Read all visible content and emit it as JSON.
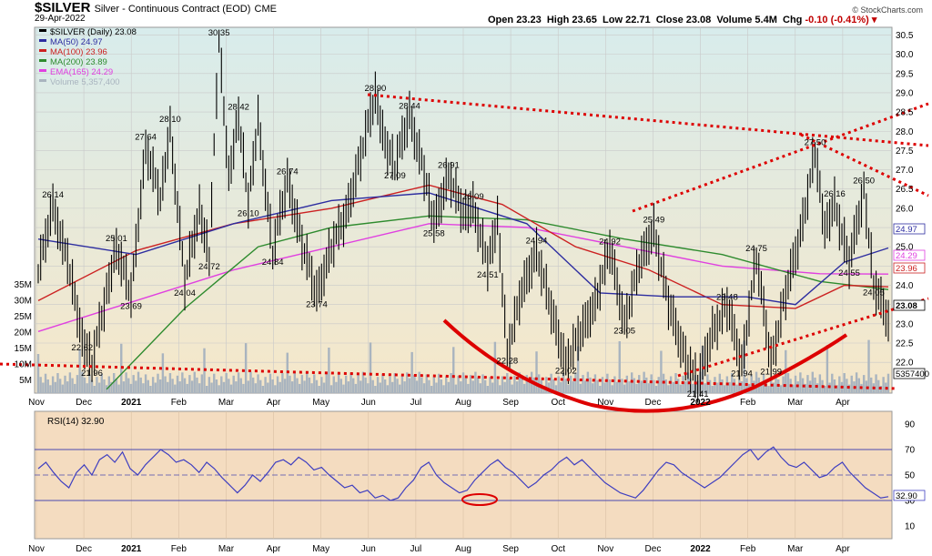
{
  "header": {
    "title": "$SILVER",
    "subtitle": "Silver - Continuous Contract (EOD)",
    "exchange": "CME",
    "date": "29-Apr-2022",
    "brand": "© StockCharts.com",
    "quote": {
      "open_label": "Open",
      "open": "23.23",
      "high_label": "High",
      "high": "23.65",
      "low_label": "Low",
      "low": "22.71",
      "close_label": "Close",
      "close": "23.08",
      "volume_label": "Volume",
      "volume": "5.4M",
      "chg_label": "Chg",
      "chg": "-0.10 (-0.41%)"
    }
  },
  "colors": {
    "price": "#000000",
    "ma50": "#2d2da0",
    "ma100": "#cc2222",
    "ma200": "#2e8b2e",
    "ema165": "#e040e0",
    "volume": "#a9b4bf",
    "trendline": "#dd0000",
    "rsi": "#3f3fc0",
    "upper_panel_bg_top": "#d8ecec",
    "upper_panel_bg_bottom": "#f6e7c9",
    "lower_panel_bg": "#f4dcc0"
  },
  "chart_data": [
    {
      "type": "line",
      "title": "$SILVER (Daily) 23.08",
      "legend": [
        {
          "label": "$SILVER (Daily) 23.08",
          "color": "#000000"
        },
        {
          "label": "MA(50) 24.97",
          "color": "#2d2da0"
        },
        {
          "label": "MA(100) 23.96",
          "color": "#cc2222"
        },
        {
          "label": "MA(200) 23.89",
          "color": "#2e8b2e"
        },
        {
          "label": "EMA(165) 24.29",
          "color": "#e040e0"
        },
        {
          "label": "Volume 5,357,400",
          "color": "#a9b4bf"
        }
      ],
      "legend_position": "top-left",
      "x_ticks": [
        "Nov",
        "Dec",
        "2021",
        "Feb",
        "Mar",
        "Apr",
        "May",
        "Jun",
        "Jul",
        "Aug",
        "Sep",
        "Oct",
        "Nov",
        "Dec",
        "2022",
        "Feb",
        "Mar",
        "Apr"
      ],
      "y_ticks": [
        "22.0",
        "22.5",
        "23.0",
        "23.5",
        "24.0",
        "24.5",
        "25.0",
        "25.5",
        "26.0",
        "26.5",
        "27.0",
        "27.5",
        "28.0",
        "28.5",
        "29.0",
        "29.5",
        "30.0",
        "30.5"
      ],
      "ylim": [
        21.2,
        30.7
      ],
      "volume_ticks": [
        "5M",
        "10M",
        "15M",
        "20M",
        "25M",
        "30M",
        "35M"
      ],
      "grid": true,
      "price_points": [
        {
          "t": 0,
          "v": 24.3
        },
        {
          "t": 3,
          "v": 26.14
        },
        {
          "t": 7,
          "v": 24.0
        },
        {
          "t": 9,
          "v": 22.62
        },
        {
          "t": 11,
          "v": 21.96
        },
        {
          "t": 14,
          "v": 23.8
        },
        {
          "t": 16,
          "v": 25.01
        },
        {
          "t": 19,
          "v": 23.69
        },
        {
          "t": 22,
          "v": 27.64
        },
        {
          "t": 25,
          "v": 26.2
        },
        {
          "t": 27,
          "v": 28.1
        },
        {
          "t": 30,
          "v": 24.04
        },
        {
          "t": 33,
          "v": 26.0
        },
        {
          "t": 35,
          "v": 24.72
        },
        {
          "t": 37,
          "v": 30.35
        },
        {
          "t": 39,
          "v": 26.8
        },
        {
          "t": 41,
          "v": 28.42
        },
        {
          "t": 43,
          "v": 26.1
        },
        {
          "t": 45,
          "v": 28.3
        },
        {
          "t": 48,
          "v": 24.84
        },
        {
          "t": 51,
          "v": 26.74
        },
        {
          "t": 54,
          "v": 25.1
        },
        {
          "t": 57,
          "v": 23.74
        },
        {
          "t": 60,
          "v": 25.0
        },
        {
          "t": 63,
          "v": 25.8
        },
        {
          "t": 66,
          "v": 27.4
        },
        {
          "t": 69,
          "v": 28.9
        },
        {
          "t": 71,
          "v": 27.7
        },
        {
          "t": 73,
          "v": 27.09
        },
        {
          "t": 76,
          "v": 28.44
        },
        {
          "t": 79,
          "v": 26.9
        },
        {
          "t": 81,
          "v": 25.58
        },
        {
          "t": 84,
          "v": 26.91
        },
        {
          "t": 87,
          "v": 25.8
        },
        {
          "t": 89,
          "v": 26.09
        },
        {
          "t": 92,
          "v": 24.51
        },
        {
          "t": 94,
          "v": 25.7
        },
        {
          "t": 96,
          "v": 22.28
        },
        {
          "t": 99,
          "v": 23.8
        },
        {
          "t": 102,
          "v": 24.94
        },
        {
          "t": 105,
          "v": 23.3
        },
        {
          "t": 108,
          "v": 22.02
        },
        {
          "t": 111,
          "v": 22.7
        },
        {
          "t": 114,
          "v": 23.6
        },
        {
          "t": 117,
          "v": 24.92
        },
        {
          "t": 120,
          "v": 23.05
        },
        {
          "t": 123,
          "v": 24.5
        },
        {
          "t": 126,
          "v": 25.49
        },
        {
          "t": 129,
          "v": 23.5
        },
        {
          "t": 132,
          "v": 22.3
        },
        {
          "t": 135,
          "v": 21.41
        },
        {
          "t": 138,
          "v": 22.8
        },
        {
          "t": 141,
          "v": 23.48
        },
        {
          "t": 144,
          "v": 21.94
        },
        {
          "t": 147,
          "v": 24.75
        },
        {
          "t": 150,
          "v": 21.99
        },
        {
          "t": 153,
          "v": 23.8
        },
        {
          "t": 156,
          "v": 25.3
        },
        {
          "t": 159,
          "v": 27.5
        },
        {
          "t": 161,
          "v": 25.4
        },
        {
          "t": 163,
          "v": 26.16
        },
        {
          "t": 166,
          "v": 24.55
        },
        {
          "t": 169,
          "v": 26.5
        },
        {
          "t": 171,
          "v": 24.05
        },
        {
          "t": 174,
          "v": 23.08
        }
      ],
      "ma50_points": [
        [
          0,
          25.2
        ],
        [
          20,
          24.8
        ],
        [
          40,
          25.6
        ],
        [
          60,
          26.2
        ],
        [
          80,
          26.4
        ],
        [
          100,
          25.6
        ],
        [
          115,
          23.8
        ],
        [
          130,
          23.7
        ],
        [
          145,
          23.7
        ],
        [
          155,
          23.5
        ],
        [
          165,
          24.6
        ],
        [
          174,
          24.97
        ]
      ],
      "ma100_points": [
        [
          0,
          23.6
        ],
        [
          20,
          24.9
        ],
        [
          40,
          25.6
        ],
        [
          60,
          26.0
        ],
        [
          80,
          26.6
        ],
        [
          95,
          26.1
        ],
        [
          110,
          25.0
        ],
        [
          125,
          24.4
        ],
        [
          140,
          23.5
        ],
        [
          155,
          23.4
        ],
        [
          165,
          24.0
        ],
        [
          174,
          23.96
        ]
      ],
      "ma200_points": [
        [
          14,
          21.3
        ],
        [
          30,
          23.4
        ],
        [
          45,
          25.0
        ],
        [
          60,
          25.5
        ],
        [
          80,
          25.8
        ],
        [
          100,
          25.7
        ],
        [
          120,
          25.2
        ],
        [
          140,
          24.8
        ],
        [
          160,
          24.1
        ],
        [
          174,
          23.89
        ]
      ],
      "ema165_points": [
        [
          0,
          22.8
        ],
        [
          20,
          23.6
        ],
        [
          40,
          24.4
        ],
        [
          60,
          25.0
        ],
        [
          80,
          25.6
        ],
        [
          100,
          25.5
        ],
        [
          120,
          25.0
        ],
        [
          140,
          24.5
        ],
        [
          160,
          24.3
        ],
        [
          174,
          24.29
        ]
      ],
      "annotations": [
        "26.14",
        "22.62",
        "21.96",
        "25.01",
        "23.69",
        "27.64",
        "28.10",
        "24.04",
        "24.72",
        "30.35",
        "28.42",
        "26.10",
        "24.84",
        "26.74",
        "23.74",
        "28.90",
        "27.09",
        "28.44",
        "25.58",
        "26.91",
        "26.09",
        "24.51",
        "22.28",
        "24.94",
        "22.02",
        "24.92",
        "23.05",
        "25.49",
        "21.41",
        "23.48",
        "21.94",
        "24.75",
        "21.99",
        "27.50",
        "26.16",
        "24.55",
        "26.50",
        "24.05"
      ],
      "right_value_labels": [
        {
          "label": "24.97",
          "color": "#2d2da0"
        },
        {
          "label": "24.29",
          "color": "#e040e0"
        },
        {
          "label": "23.96",
          "color": "#cc2222"
        },
        {
          "label": "23.08",
          "color": "#000000"
        },
        {
          "label": "5357400",
          "color": "#000000"
        }
      ]
    },
    {
      "type": "line",
      "title": "RSI(14) 32.90",
      "series": [
        {
          "name": "RSI(14) 32.90"
        }
      ],
      "x_ticks": [
        "Nov",
        "Dec",
        "2021",
        "Feb",
        "Mar",
        "Apr",
        "May",
        "Jun",
        "Jul",
        "Aug",
        "Sep",
        "Oct",
        "Nov",
        "Dec",
        "2022",
        "Feb",
        "Mar",
        "Apr"
      ],
      "y_ticks": [
        "10",
        "30",
        "50",
        "70",
        "90"
      ],
      "ylim": [
        0,
        100
      ],
      "levels": [
        30,
        50,
        70
      ],
      "last_value_label": "32.90",
      "values": [
        55,
        60,
        52,
        45,
        40,
        52,
        58,
        50,
        62,
        66,
        60,
        68,
        55,
        50,
        58,
        64,
        70,
        66,
        60,
        62,
        58,
        52,
        60,
        55,
        48,
        42,
        36,
        42,
        50,
        45,
        52,
        60,
        62,
        58,
        64,
        60,
        54,
        56,
        50,
        45,
        40,
        42,
        36,
        38,
        32,
        34,
        30,
        32,
        40,
        46,
        56,
        60,
        50,
        44,
        40,
        36,
        38,
        46,
        52,
        58,
        62,
        56,
        52,
        46,
        40,
        44,
        50,
        54,
        60,
        64,
        58,
        62,
        56,
        50,
        44,
        40,
        36,
        34,
        32,
        38,
        46,
        54,
        60,
        58,
        52,
        48,
        44,
        40,
        44,
        48,
        54,
        60,
        66,
        70,
        62,
        68,
        72,
        64,
        58,
        56,
        60,
        54,
        48,
        50,
        56,
        60,
        52,
        46,
        40,
        36,
        32,
        33
      ]
    }
  ]
}
